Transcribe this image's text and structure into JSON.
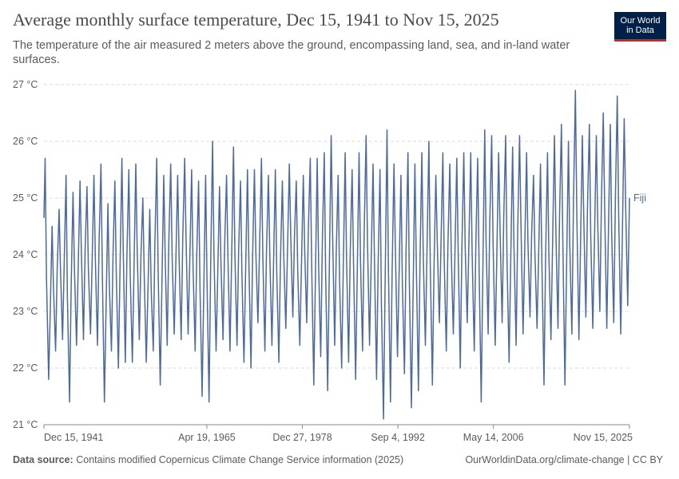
{
  "header": {
    "title": "Average monthly surface temperature, Dec 15, 1941 to Nov 15, 2025",
    "subtitle": "The temperature of the air measured 2 meters above the ground, encompassing land, sea, and in-land water surfaces.",
    "logo_line1": "Our World",
    "logo_line2": "in Data"
  },
  "footer": {
    "source_label": "Data source:",
    "source_text": "Contains modified Copernicus Climate Change Service information (2025)",
    "link_text": "OurWorldinData.org/climate-change | CC BY"
  },
  "colors": {
    "series": "#4c6a9c",
    "grid": "#dddddd",
    "text": "#5b5b5b"
  },
  "chart_data": {
    "type": "line",
    "title": "Average monthly surface temperature, Dec 15, 1941 to Nov 15, 2025",
    "xlabel": "",
    "ylabel": "",
    "ylim": [
      21,
      27
    ],
    "xlim": [
      1941.95,
      2025.87
    ],
    "y_ticks": [
      21,
      22,
      23,
      24,
      25,
      26,
      27
    ],
    "y_tick_labels": [
      "21 °C",
      "22 °C",
      "23 °C",
      "24 °C",
      "25 °C",
      "26 °C",
      "27 °C"
    ],
    "x_ticks": [
      1941.95,
      1965.3,
      1978.99,
      1992.68,
      2006.37,
      2025.87
    ],
    "x_tick_labels": [
      "Dec 15, 1941",
      "Apr 19, 1965",
      "Dec 27, 1978",
      "Sep 4, 1992",
      "May 14, 2006",
      "Nov 15, 2025"
    ],
    "grid": true,
    "legend": "right-end label",
    "series": [
      {
        "name": "Fiji",
        "sampling": "one value per year at annual peak (Feb) and trough (Aug)",
        "peaks": [
          {
            "year": 1942,
            "value": 25.7
          },
          {
            "year": 1943,
            "value": 24.5
          },
          {
            "year": 1944,
            "value": 24.8
          },
          {
            "year": 1945,
            "value": 25.4
          },
          {
            "year": 1946,
            "value": 25.1
          },
          {
            "year": 1947,
            "value": 25.3
          },
          {
            "year": 1948,
            "value": 25.2
          },
          {
            "year": 1949,
            "value": 25.4
          },
          {
            "year": 1950,
            "value": 25.6
          },
          {
            "year": 1951,
            "value": 24.9
          },
          {
            "year": 1952,
            "value": 25.3
          },
          {
            "year": 1953,
            "value": 25.7
          },
          {
            "year": 1954,
            "value": 25.5
          },
          {
            "year": 1955,
            "value": 25.6
          },
          {
            "year": 1956,
            "value": 25.0
          },
          {
            "year": 1957,
            "value": 24.8
          },
          {
            "year": 1958,
            "value": 25.7
          },
          {
            "year": 1959,
            "value": 25.4
          },
          {
            "year": 1960,
            "value": 25.6
          },
          {
            "year": 1961,
            "value": 25.4
          },
          {
            "year": 1962,
            "value": 25.7
          },
          {
            "year": 1963,
            "value": 25.5
          },
          {
            "year": 1964,
            "value": 25.3
          },
          {
            "year": 1965,
            "value": 25.4
          },
          {
            "year": 1966,
            "value": 26.0
          },
          {
            "year": 1967,
            "value": 25.2
          },
          {
            "year": 1968,
            "value": 25.4
          },
          {
            "year": 1969,
            "value": 25.9
          },
          {
            "year": 1970,
            "value": 25.3
          },
          {
            "year": 1971,
            "value": 25.5
          },
          {
            "year": 1972,
            "value": 25.5
          },
          {
            "year": 1973,
            "value": 25.7
          },
          {
            "year": 1974,
            "value": 25.4
          },
          {
            "year": 1975,
            "value": 25.5
          },
          {
            "year": 1976,
            "value": 25.3
          },
          {
            "year": 1977,
            "value": 25.6
          },
          {
            "year": 1978,
            "value": 25.3
          },
          {
            "year": 1979,
            "value": 25.4
          },
          {
            "year": 1980,
            "value": 25.7
          },
          {
            "year": 1981,
            "value": 25.7
          },
          {
            "year": 1982,
            "value": 25.8
          },
          {
            "year": 1983,
            "value": 26.1
          },
          {
            "year": 1984,
            "value": 25.4
          },
          {
            "year": 1985,
            "value": 25.8
          },
          {
            "year": 1986,
            "value": 25.5
          },
          {
            "year": 1987,
            "value": 25.8
          },
          {
            "year": 1988,
            "value": 26.1
          },
          {
            "year": 1989,
            "value": 25.6
          },
          {
            "year": 1990,
            "value": 25.5
          },
          {
            "year": 1991,
            "value": 26.2
          },
          {
            "year": 1992,
            "value": 25.6
          },
          {
            "year": 1993,
            "value": 25.4
          },
          {
            "year": 1994,
            "value": 25.8
          },
          {
            "year": 1995,
            "value": 25.6
          },
          {
            "year": 1996,
            "value": 25.8
          },
          {
            "year": 1997,
            "value": 26.0
          },
          {
            "year": 1998,
            "value": 25.4
          },
          {
            "year": 1999,
            "value": 25.8
          },
          {
            "year": 2000,
            "value": 25.6
          },
          {
            "year": 2001,
            "value": 25.7
          },
          {
            "year": 2002,
            "value": 25.8
          },
          {
            "year": 2003,
            "value": 25.8
          },
          {
            "year": 2004,
            "value": 25.7
          },
          {
            "year": 2005,
            "value": 26.2
          },
          {
            "year": 2006,
            "value": 26.1
          },
          {
            "year": 2007,
            "value": 25.8
          },
          {
            "year": 2008,
            "value": 26.1
          },
          {
            "year": 2009,
            "value": 25.9
          },
          {
            "year": 2010,
            "value": 26.1
          },
          {
            "year": 2011,
            "value": 25.8
          },
          {
            "year": 2012,
            "value": 25.4
          },
          {
            "year": 2013,
            "value": 25.6
          },
          {
            "year": 2014,
            "value": 25.8
          },
          {
            "year": 2015,
            "value": 26.1
          },
          {
            "year": 2016,
            "value": 26.3
          },
          {
            "year": 2017,
            "value": 26.0
          },
          {
            "year": 2018,
            "value": 26.9
          },
          {
            "year": 2019,
            "value": 26.1
          },
          {
            "year": 2020,
            "value": 26.3
          },
          {
            "year": 2021,
            "value": 26.1
          },
          {
            "year": 2022,
            "value": 26.5
          },
          {
            "year": 2023,
            "value": 26.3
          },
          {
            "year": 2024,
            "value": 26.8
          },
          {
            "year": 2025,
            "value": 26.4
          }
        ],
        "troughs": [
          {
            "year": 1942,
            "value": 21.8
          },
          {
            "year": 1943,
            "value": 22.3
          },
          {
            "year": 1944,
            "value": 22.5
          },
          {
            "year": 1945,
            "value": 21.4
          },
          {
            "year": 1946,
            "value": 22.4
          },
          {
            "year": 1947,
            "value": 22.5
          },
          {
            "year": 1948,
            "value": 22.6
          },
          {
            "year": 1949,
            "value": 22.4
          },
          {
            "year": 1950,
            "value": 21.4
          },
          {
            "year": 1951,
            "value": 22.3
          },
          {
            "year": 1952,
            "value": 22.0
          },
          {
            "year": 1953,
            "value": 22.1
          },
          {
            "year": 1954,
            "value": 22.1
          },
          {
            "year": 1955,
            "value": 22.5
          },
          {
            "year": 1956,
            "value": 22.1
          },
          {
            "year": 1957,
            "value": 22.3
          },
          {
            "year": 1958,
            "value": 21.7
          },
          {
            "year": 1959,
            "value": 22.4
          },
          {
            "year": 1960,
            "value": 22.6
          },
          {
            "year": 1961,
            "value": 22.5
          },
          {
            "year": 1962,
            "value": 22.6
          },
          {
            "year": 1963,
            "value": 22.3
          },
          {
            "year": 1964,
            "value": 21.5
          },
          {
            "year": 1965,
            "value": 21.4
          },
          {
            "year": 1966,
            "value": 22.3
          },
          {
            "year": 1967,
            "value": 22.5
          },
          {
            "year": 1968,
            "value": 22.3
          },
          {
            "year": 1969,
            "value": 22.4
          },
          {
            "year": 1970,
            "value": 22.1
          },
          {
            "year": 1971,
            "value": 22.0
          },
          {
            "year": 1972,
            "value": 22.8
          },
          {
            "year": 1973,
            "value": 22.3
          },
          {
            "year": 1974,
            "value": 22.4
          },
          {
            "year": 1975,
            "value": 22.1
          },
          {
            "year": 1976,
            "value": 22.7
          },
          {
            "year": 1977,
            "value": 22.9
          },
          {
            "year": 1978,
            "value": 22.4
          },
          {
            "year": 1979,
            "value": 22.8
          },
          {
            "year": 1980,
            "value": 21.7
          },
          {
            "year": 1981,
            "value": 22.2
          },
          {
            "year": 1982,
            "value": 21.6
          },
          {
            "year": 1983,
            "value": 22.4
          },
          {
            "year": 1984,
            "value": 22.0
          },
          {
            "year": 1985,
            "value": 22.1
          },
          {
            "year": 1986,
            "value": 21.8
          },
          {
            "year": 1987,
            "value": 22.3
          },
          {
            "year": 1988,
            "value": 22.4
          },
          {
            "year": 1989,
            "value": 21.8
          },
          {
            "year": 1990,
            "value": 21.1
          },
          {
            "year": 1991,
            "value": 21.4
          },
          {
            "year": 1992,
            "value": 22.2
          },
          {
            "year": 1993,
            "value": 21.9
          },
          {
            "year": 1994,
            "value": 21.3
          },
          {
            "year": 1995,
            "value": 21.6
          },
          {
            "year": 1996,
            "value": 22.4
          },
          {
            "year": 1997,
            "value": 21.7
          },
          {
            "year": 1998,
            "value": 22.8
          },
          {
            "year": 1999,
            "value": 22.3
          },
          {
            "year": 2000,
            "value": 22.6
          },
          {
            "year": 2001,
            "value": 22.0
          },
          {
            "year": 2002,
            "value": 22.8
          },
          {
            "year": 2003,
            "value": 22.3
          },
          {
            "year": 2004,
            "value": 21.4
          },
          {
            "year": 2005,
            "value": 22.6
          },
          {
            "year": 2006,
            "value": 22.4
          },
          {
            "year": 2007,
            "value": 22.8
          },
          {
            "year": 2008,
            "value": 22.1
          },
          {
            "year": 2009,
            "value": 22.4
          },
          {
            "year": 2010,
            "value": 22.6
          },
          {
            "year": 2011,
            "value": 22.9
          },
          {
            "year": 2012,
            "value": 22.7
          },
          {
            "year": 2013,
            "value": 21.7
          },
          {
            "year": 2014,
            "value": 22.5
          },
          {
            "year": 2015,
            "value": 22.7
          },
          {
            "year": 2016,
            "value": 21.7
          },
          {
            "year": 2017,
            "value": 22.6
          },
          {
            "year": 2018,
            "value": 22.5
          },
          {
            "year": 2019,
            "value": 22.9
          },
          {
            "year": 2020,
            "value": 22.7
          },
          {
            "year": 2021,
            "value": 23.0
          },
          {
            "year": 2022,
            "value": 22.7
          },
          {
            "year": 2023,
            "value": 22.8
          },
          {
            "year": 2024,
            "value": 22.6
          },
          {
            "year": 2025,
            "value": 23.1
          }
        ],
        "end_value": 25.0
      }
    ]
  }
}
